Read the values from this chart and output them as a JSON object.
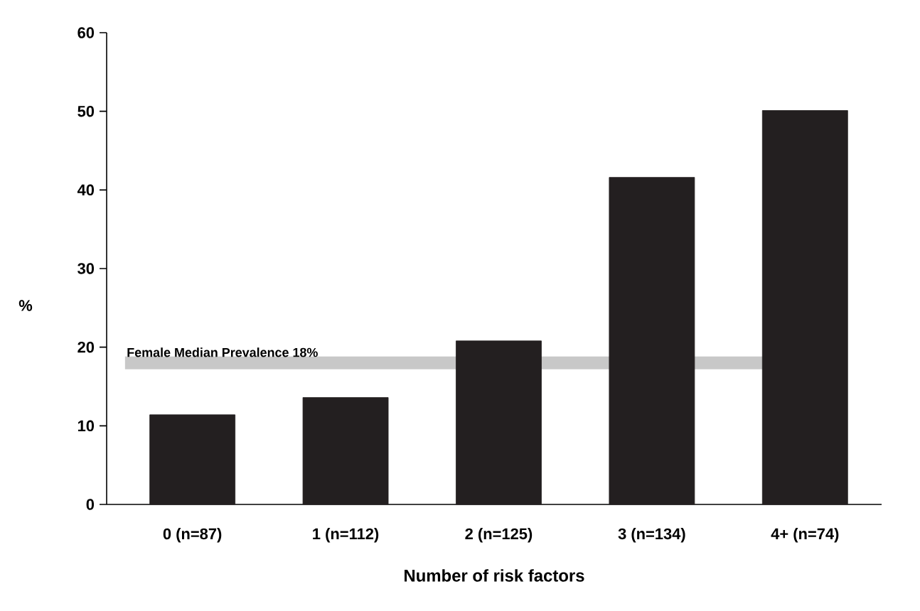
{
  "chart_data": {
    "type": "bar",
    "xlabel": "Number of risk factors",
    "ylabel": "%",
    "categories": [
      "0 (n=87)",
      "1 (n=112)",
      "2 (n=125)",
      "3 (n=134)",
      "4+ (n=74)"
    ],
    "values": [
      11.4,
      13.6,
      20.8,
      41.6,
      50.1
    ],
    "color": "#231f20",
    "ylim": [
      0,
      60
    ],
    "yticks": [
      0,
      10,
      20,
      30,
      40,
      50,
      60
    ],
    "grid": false,
    "ref_lines": [
      {
        "axis": "y",
        "value": 18,
        "label": "Female Median Prevalence 18%",
        "color": "#c8c8c8"
      }
    ]
  }
}
